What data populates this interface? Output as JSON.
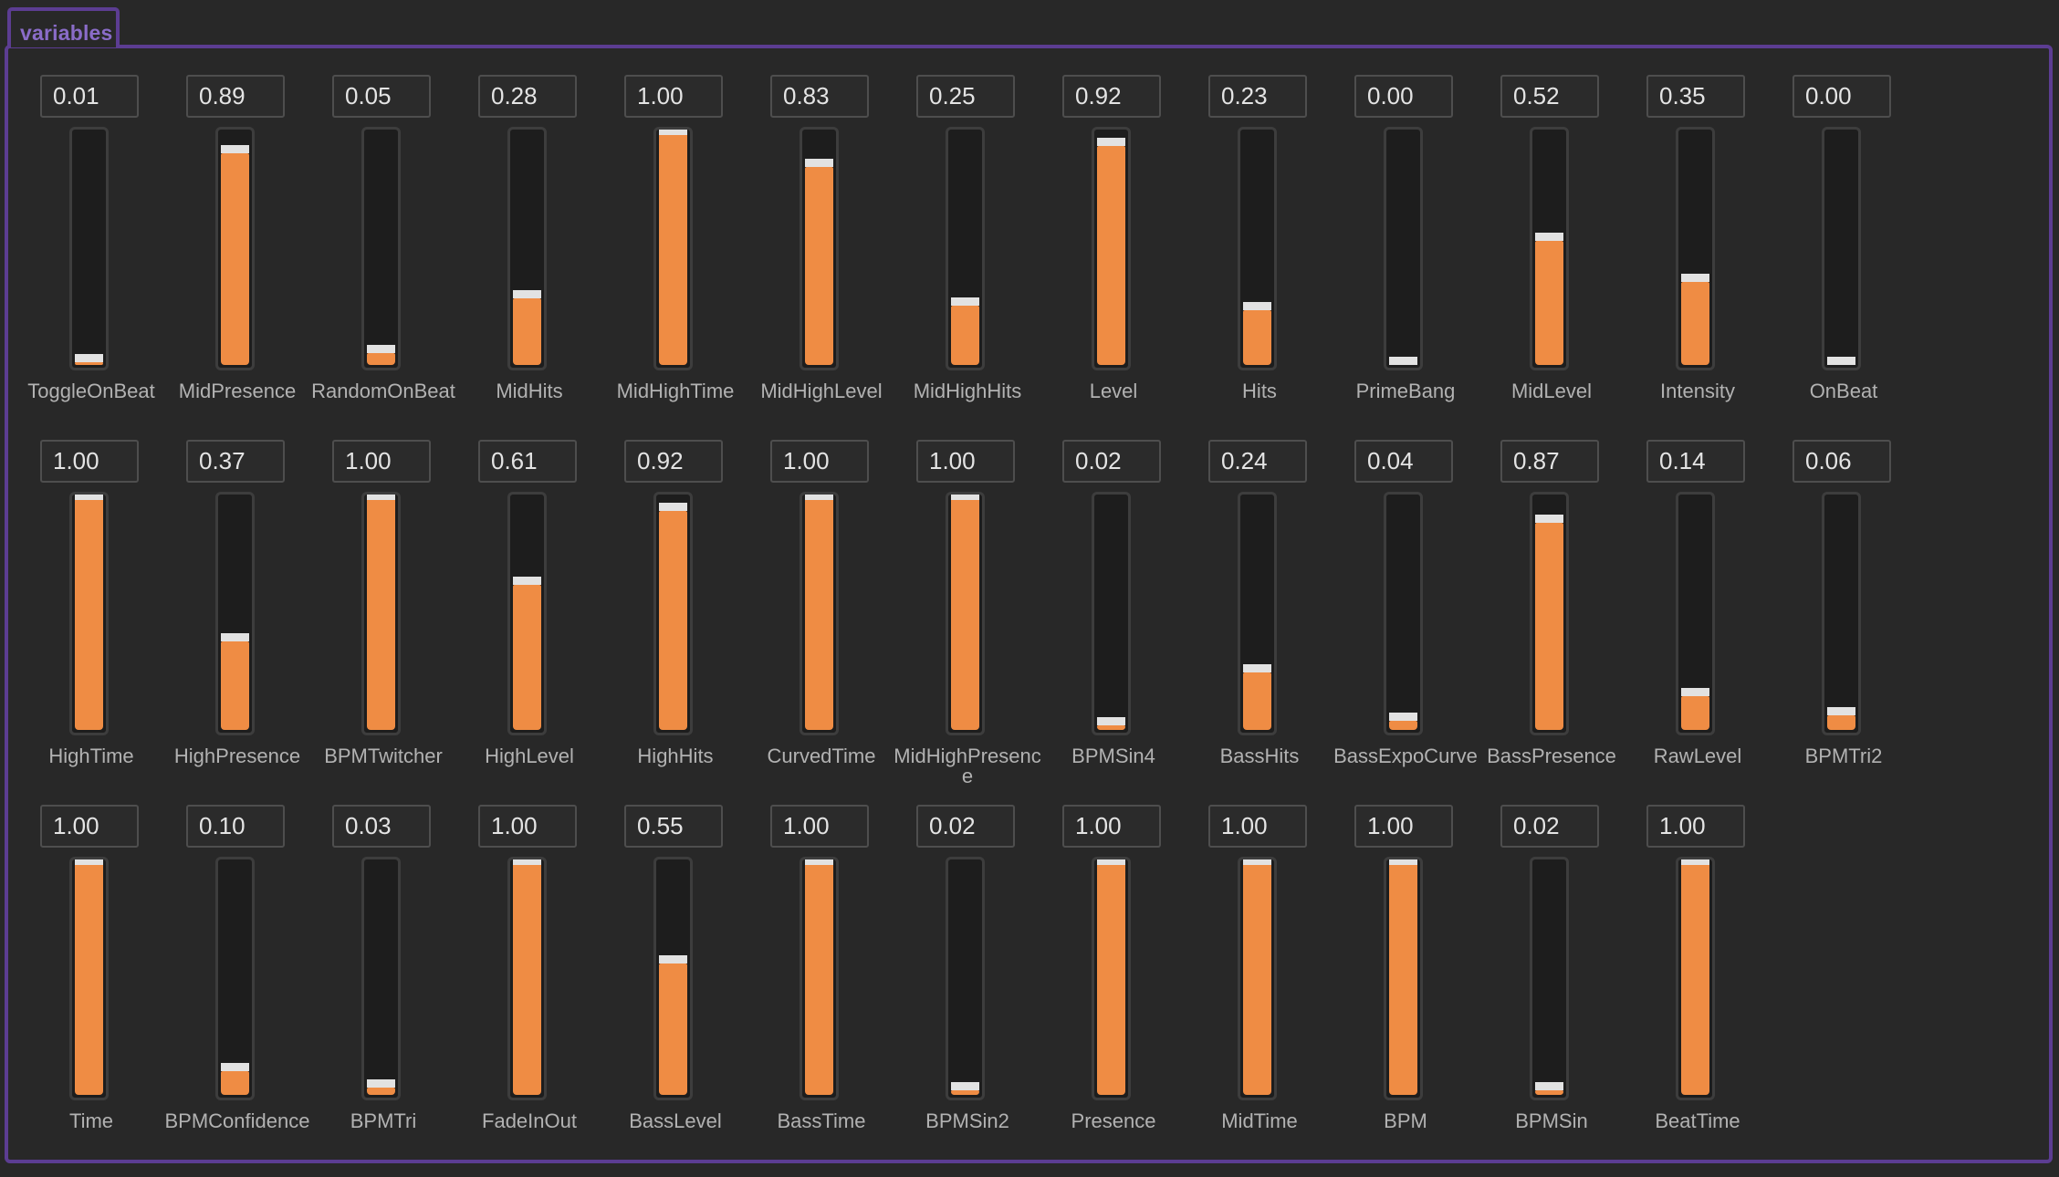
{
  "panel": {
    "tab_label": "variables",
    "accent_color": "#5c3d92",
    "fill_color": "#ef8c44"
  },
  "rows": [
    [
      {
        "name": "ToggleOnBeat",
        "value": "0.01"
      },
      {
        "name": "MidPresence",
        "value": "0.89"
      },
      {
        "name": "RandomOnBeat",
        "value": "0.05"
      },
      {
        "name": "MidHits",
        "value": "0.28"
      },
      {
        "name": "MidHighTime",
        "value": "1.00"
      },
      {
        "name": "MidHighLevel",
        "value": "0.83"
      },
      {
        "name": "MidHighHits",
        "value": "0.25"
      },
      {
        "name": "Level",
        "value": "0.92"
      },
      {
        "name": "Hits",
        "value": "0.23"
      },
      {
        "name": "PrimeBang",
        "value": "0.00"
      },
      {
        "name": "MidLevel",
        "value": "0.52"
      },
      {
        "name": "Intensity",
        "value": "0.35"
      },
      {
        "name": "OnBeat",
        "value": "0.00"
      }
    ],
    [
      {
        "name": "HighTime",
        "value": "1.00"
      },
      {
        "name": "HighPresence",
        "value": "0.37"
      },
      {
        "name": "BPMTwitcher",
        "value": "1.00"
      },
      {
        "name": "HighLevel",
        "value": "0.61"
      },
      {
        "name": "HighHits",
        "value": "0.92"
      },
      {
        "name": "CurvedTime",
        "value": "1.00"
      },
      {
        "name": "MidHighPresence",
        "value": "1.00"
      },
      {
        "name": "BPMSin4",
        "value": "0.02"
      },
      {
        "name": "BassHits",
        "value": "0.24"
      },
      {
        "name": "BassExpoCurve",
        "value": "0.04"
      },
      {
        "name": "BassPresence",
        "value": "0.87"
      },
      {
        "name": "RawLevel",
        "value": "0.14"
      },
      {
        "name": "BPMTri2",
        "value": "0.06"
      }
    ],
    [
      {
        "name": "Time",
        "value": "1.00"
      },
      {
        "name": "BPMConfidence",
        "value": "0.10"
      },
      {
        "name": "BPMTri",
        "value": "0.03"
      },
      {
        "name": "FadeInOut",
        "value": "1.00"
      },
      {
        "name": "BassLevel",
        "value": "0.55"
      },
      {
        "name": "BassTime",
        "value": "1.00"
      },
      {
        "name": "BPMSin2",
        "value": "0.02"
      },
      {
        "name": "Presence",
        "value": "1.00"
      },
      {
        "name": "MidTime",
        "value": "1.00"
      },
      {
        "name": "BPM",
        "value": "1.00"
      },
      {
        "name": "BPMSin",
        "value": "0.02"
      },
      {
        "name": "BeatTime",
        "value": "1.00"
      }
    ]
  ]
}
